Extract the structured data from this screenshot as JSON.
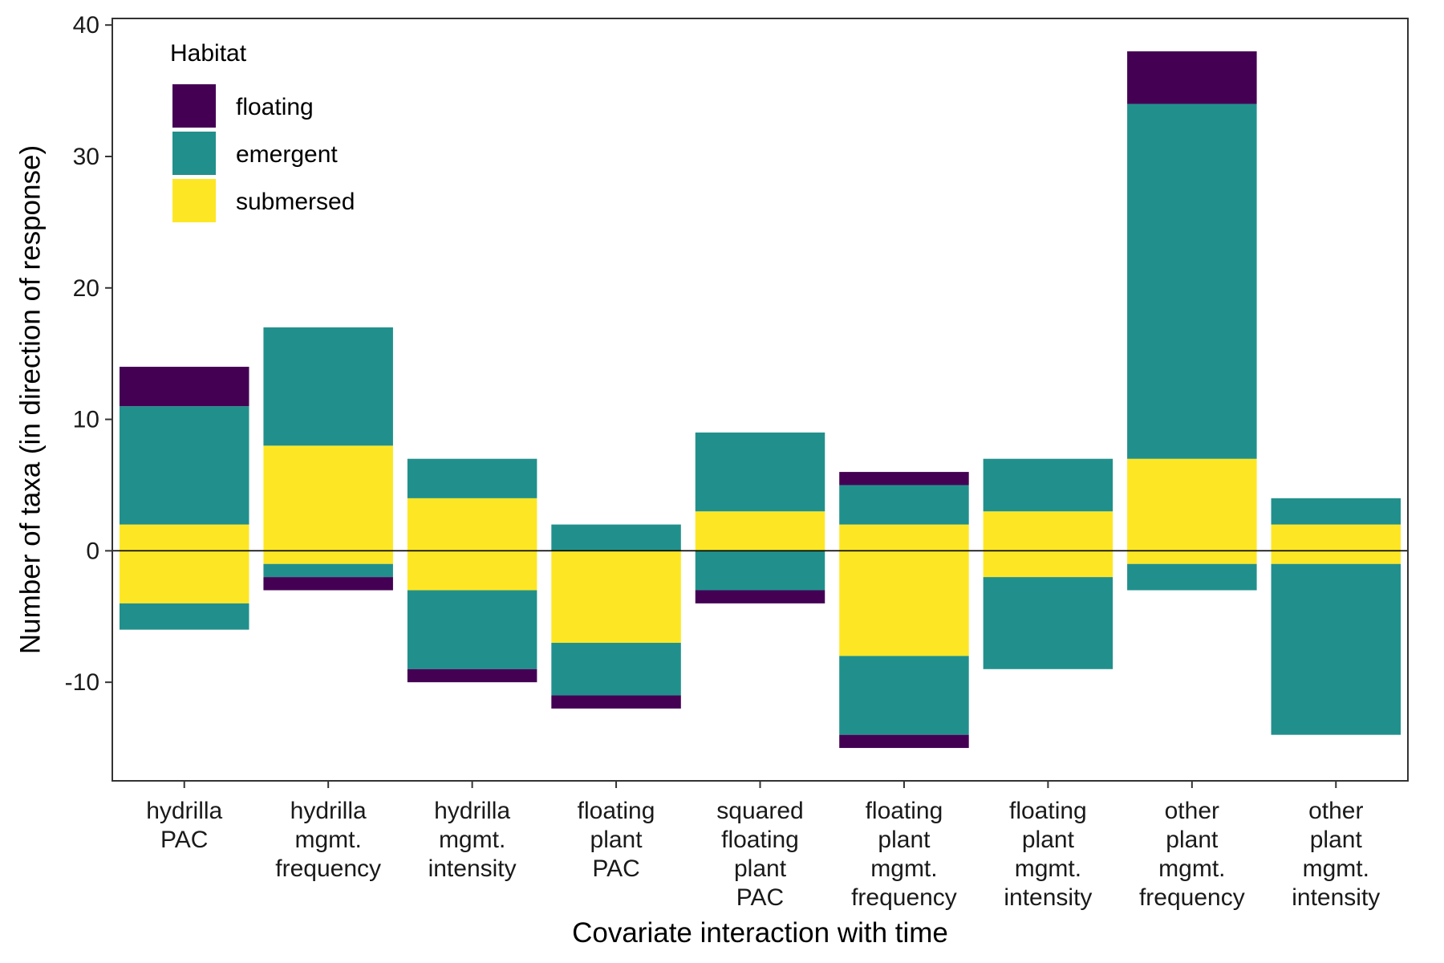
{
  "chart_data": {
    "type": "bar",
    "stacked": true,
    "diverging": true,
    "xlabel": "Covariate interaction with time",
    "ylabel": "Number of taxa (in direction of response)",
    "ylim": [
      -17.5,
      40.5
    ],
    "yticks": [
      -10,
      0,
      10,
      20,
      30,
      40
    ],
    "grid": false,
    "zero_line": true,
    "legend": {
      "title": "Habitat",
      "position": "top-left"
    },
    "categories": [
      [
        "hydrilla",
        "PAC"
      ],
      [
        "hydrilla",
        "mgmt.",
        "frequency"
      ],
      [
        "hydrilla",
        "mgmt.",
        "intensity"
      ],
      [
        "floating",
        "plant",
        "PAC"
      ],
      [
        "squared",
        "floating",
        "plant",
        "PAC"
      ],
      [
        "floating",
        "plant",
        "mgmt.",
        "frequency"
      ],
      [
        "floating",
        "plant",
        "mgmt.",
        "intensity"
      ],
      [
        "other",
        "plant",
        "mgmt.",
        "frequency"
      ],
      [
        "other",
        "plant",
        "mgmt.",
        "intensity"
      ]
    ],
    "series": [
      {
        "name": "floating",
        "color": "#440154",
        "positive": [
          3,
          0,
          0,
          0,
          0,
          1,
          0,
          4,
          0
        ],
        "negative": [
          0,
          -1,
          -1,
          -1,
          -1,
          -1,
          0,
          0,
          0
        ]
      },
      {
        "name": "emergent",
        "color": "#21908C",
        "positive": [
          9,
          9,
          3,
          2,
          6,
          3,
          4,
          27,
          2
        ],
        "negative": [
          -2,
          -1,
          -6,
          -4,
          -3,
          -6,
          -7,
          -2,
          -13
        ]
      },
      {
        "name": "submersed",
        "color": "#FDE725",
        "positive": [
          2,
          8,
          4,
          0,
          3,
          2,
          3,
          7,
          2
        ],
        "negative": [
          -4,
          -1,
          -3,
          -7,
          0,
          -8,
          -2,
          -1,
          -1
        ]
      }
    ],
    "stack_order": [
      "submersed",
      "emergent",
      "floating"
    ]
  }
}
